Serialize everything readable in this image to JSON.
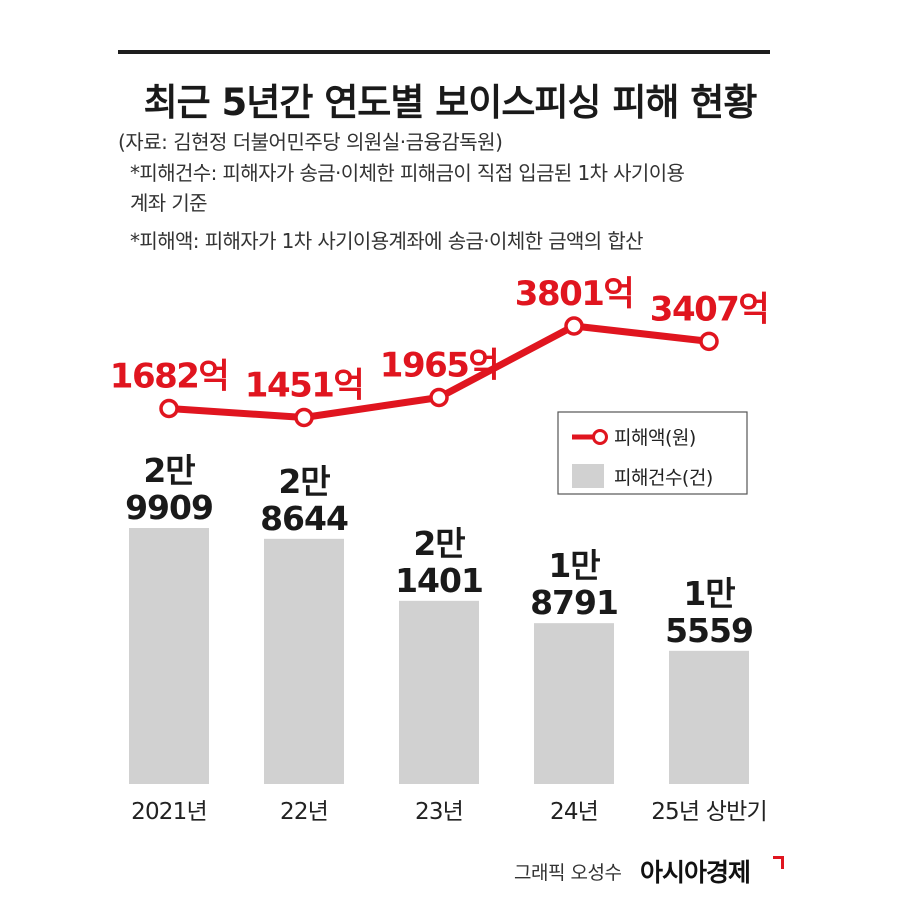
{
  "header": {
    "title": "최근 5년간 연도별 보이스피싱 피해 현황",
    "source": "(자료: 김현정 더불어민주당 의원실·금융감독원)",
    "note_count_line1": "*피해건수: 피해자가 송금·이체한 피해금이 직접 입금된 1차 사기이용",
    "note_count_line2": "계좌 기준",
    "note_amount": "*피해액: 피해자가 1차 사기이용계좌에 송금·이체한 금액의 합산"
  },
  "chart_data": {
    "type": "bar",
    "categories": [
      "2021년",
      "22년",
      "23년",
      "24년",
      "25년 상반기"
    ],
    "series": [
      {
        "name": "피해건수(건)",
        "type": "bar",
        "values": [
          29909,
          28644,
          21401,
          18791,
          15559
        ],
        "labels_top": [
          "2만",
          "2만",
          "2만",
          "1만",
          "1만"
        ],
        "labels_bottom": [
          "9909",
          "8644",
          "1401",
          "8791",
          "5559"
        ],
        "color": "#d1d1d1"
      },
      {
        "name": "피해액(원)",
        "type": "line",
        "values": [
          1682,
          1451,
          1965,
          3801,
          3407
        ],
        "labels": [
          "1682억",
          "1451억",
          "1965억",
          "3801억",
          "3407억"
        ],
        "color": "#e0151f"
      }
    ],
    "legend_position": "right",
    "grid": false
  },
  "footer": {
    "credit": "그래픽 오성수",
    "brand": "아시아경제"
  }
}
